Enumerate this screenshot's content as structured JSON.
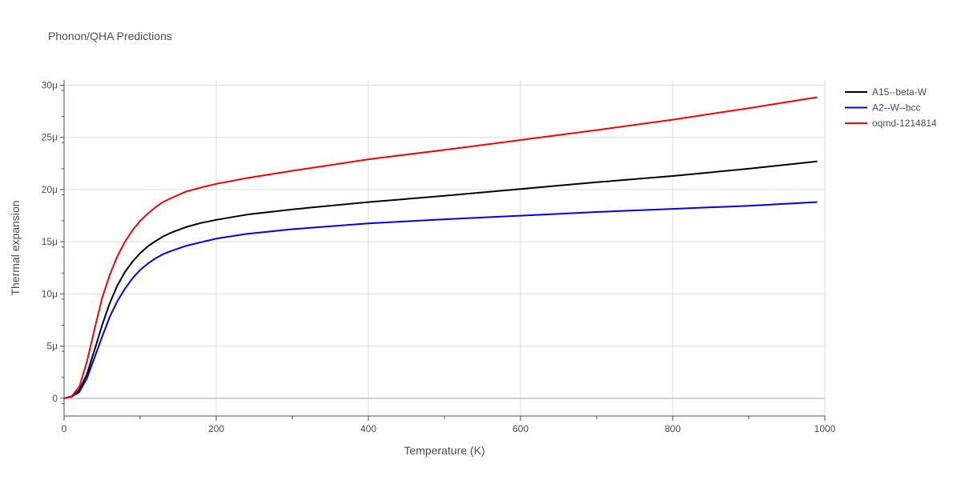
{
  "chart_data": {
    "type": "line",
    "title": "Phonon/QHA Predictions",
    "xlabel": "Temperature (K)",
    "ylabel": "Thermal expansion",
    "xlim": [
      0,
      1000
    ],
    "ylim": [
      -1.7,
      30.5
    ],
    "x_ticks": [
      0,
      200,
      400,
      600,
      800,
      1000
    ],
    "x_tick_labels": [
      "0",
      "200",
      "400",
      "600",
      "800",
      "1000"
    ],
    "x_minor_ticks": [
      100,
      300,
      500,
      700,
      900
    ],
    "y_ticks": [
      0,
      5,
      10,
      15,
      20,
      25,
      30
    ],
    "y_tick_labels": [
      "0",
      "5μ",
      "10μ",
      "15μ",
      "20μ",
      "25μ",
      "30μ"
    ],
    "y_unit_note": "values in units of 1e-6 (μ)",
    "grid": true,
    "legend_position": "top-right",
    "series": [
      {
        "name": "A15--beta-W",
        "color": "#000000",
        "x": [
          0,
          10,
          20,
          30,
          40,
          50,
          60,
          70,
          80,
          90,
          100,
          110,
          120,
          130,
          140,
          160,
          180,
          200,
          240,
          300,
          400,
          500,
          600,
          700,
          800,
          900,
          990
        ],
        "y": [
          0,
          0.15,
          0.8,
          2.3,
          4.6,
          7.0,
          9.1,
          10.8,
          12.1,
          13.1,
          13.9,
          14.55,
          15.05,
          15.5,
          15.85,
          16.4,
          16.8,
          17.1,
          17.6,
          18.1,
          18.8,
          19.4,
          20.05,
          20.7,
          21.3,
          22.0,
          22.7
        ]
      },
      {
        "name": "A2--W--bcc",
        "color": "#0000ff",
        "x": [
          0,
          10,
          20,
          30,
          40,
          50,
          60,
          70,
          80,
          90,
          100,
          110,
          120,
          130,
          140,
          160,
          180,
          200,
          240,
          300,
          400,
          500,
          600,
          700,
          800,
          900,
          990
        ],
        "y": [
          0,
          0.15,
          0.6,
          1.9,
          3.9,
          5.9,
          7.8,
          9.3,
          10.5,
          11.5,
          12.3,
          12.9,
          13.4,
          13.8,
          14.1,
          14.6,
          14.95,
          15.3,
          15.75,
          16.2,
          16.75,
          17.15,
          17.5,
          17.85,
          18.15,
          18.45,
          18.8
        ]
      },
      {
        "name": "oqmd-1214814",
        "color": "#ff0000",
        "x": [
          0,
          10,
          20,
          30,
          40,
          50,
          60,
          70,
          80,
          90,
          100,
          110,
          120,
          130,
          140,
          160,
          180,
          200,
          240,
          300,
          400,
          500,
          600,
          700,
          800,
          900,
          990
        ],
        "y": [
          0,
          0.2,
          1.1,
          3.5,
          6.6,
          9.6,
          11.8,
          13.6,
          15.0,
          16.1,
          17.0,
          17.7,
          18.3,
          18.8,
          19.15,
          19.8,
          20.2,
          20.55,
          21.1,
          21.8,
          22.9,
          23.8,
          24.75,
          25.7,
          26.7,
          27.8,
          28.85
        ]
      }
    ]
  }
}
